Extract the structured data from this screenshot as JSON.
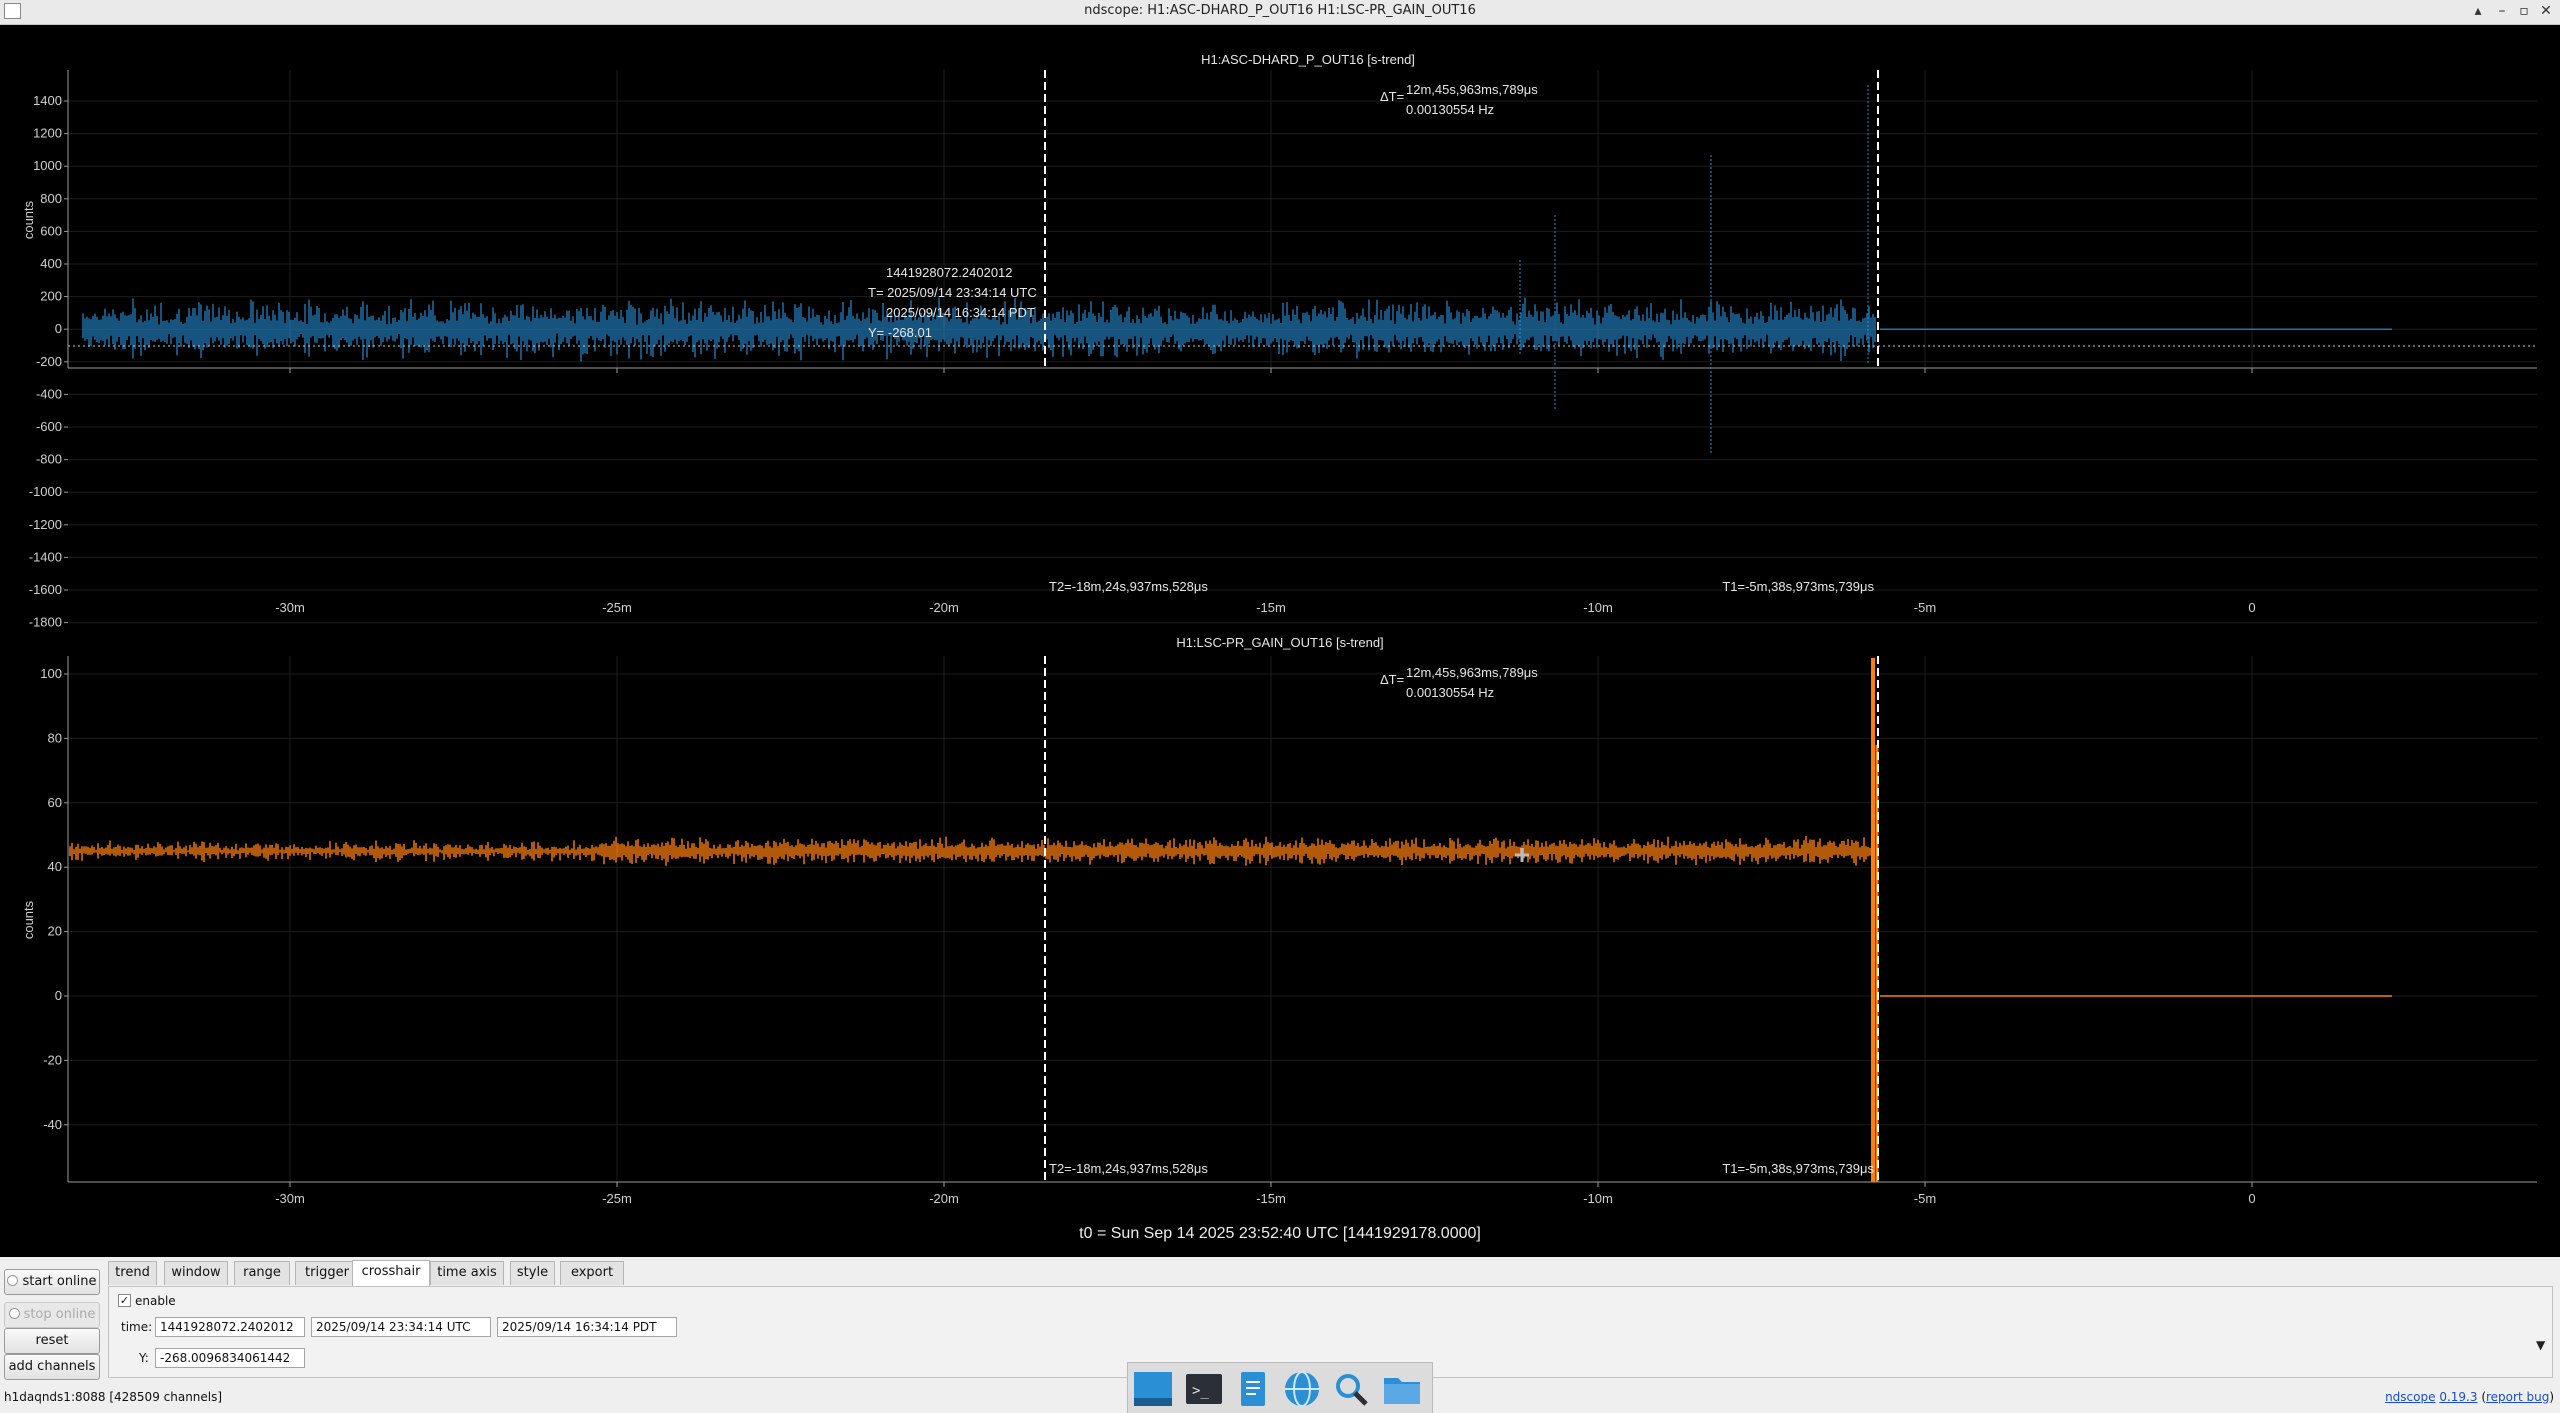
{
  "window": {
    "title": "ndscope: H1:ASC-DHARD_P_OUT16 H1:LSC-PR_GAIN_OUT16",
    "controls": [
      "▴",
      "–",
      "▫",
      "✕"
    ]
  },
  "plots": [
    {
      "title": "H1:ASC-DHARD_P_OUT16 [s-trend]",
      "ylabel": "counts",
      "yticks": [
        "1400",
        "1200",
        "1000",
        "800",
        "600",
        "400",
        "200",
        "0",
        "-200",
        "-400",
        "-600",
        "-800",
        "-1000",
        "-1200",
        "-1400",
        "-1600",
        "-1800"
      ],
      "xticks": [
        "-30m",
        "-25m",
        "-20m",
        "-15m",
        "-10m",
        "-5m",
        "0"
      ],
      "delta_label": "ΔT=",
      "delta_time": "12m,45s,963ms,789μs",
      "delta_freq": "0.00130554 Hz",
      "t2_label": "T2=-18m,24s,937ms,528μs",
      "t1_label": "T1=-5m,38s,973ms,739μs",
      "crosshair_gps": "1441928072.2402012",
      "crosshair_utc": "T= 2025/09/14 23:34:14 UTC",
      "crosshair_pdt": "2025/09/14 16:34:14 PDT",
      "crosshair_y": "Y= -268.01",
      "trace_color": "#1f77b4"
    },
    {
      "title": "H1:LSC-PR_GAIN_OUT16 [s-trend]",
      "ylabel": "counts",
      "yticks": [
        "100",
        "80",
        "60",
        "40",
        "20",
        "0",
        "-20",
        "-40"
      ],
      "xticks": [
        "-30m",
        "-25m",
        "-20m",
        "-15m",
        "-10m",
        "-5m",
        "0"
      ],
      "delta_label": "ΔT=",
      "delta_time": "12m,45s,963ms,789μs",
      "delta_freq": "0.00130554 Hz",
      "t2_label": "T2=-18m,24s,937ms,528μs",
      "t1_label": "T1=-5m,38s,973ms,739μs",
      "trace_color": "#ff7f0e"
    }
  ],
  "t0_label": "t0 = Sun Sep 14 2025 23:52:40 UTC [1441929178.0000]",
  "buttons": {
    "start_online": "start online",
    "stop_online": "stop online",
    "reset": "reset",
    "add_channels": "add channels"
  },
  "tabs": [
    "trend",
    "window",
    "range",
    "trigger",
    "crosshair",
    "time axis",
    "style",
    "export"
  ],
  "active_tab": "crosshair",
  "crosshair_panel": {
    "enable_label": "enable",
    "enable_checked": "✓",
    "time_label": "time:",
    "time_gps": "1441928072.2402012",
    "time_utc": "2025/09/14 23:34:14 UTC",
    "time_pdt": "2025/09/14 16:34:14 PDT",
    "y_label": "Y:",
    "y_value": "-268.0096834061442"
  },
  "status": "h1daqnds1:8088  [428509 channels]",
  "version": {
    "name": "ndscope",
    "number": "0.19.3",
    "report_bug": "report bug"
  },
  "dock_icons": [
    "desktop-icon",
    "terminal-icon",
    "text-editor-icon",
    "browser-icon",
    "search-icon",
    "folder-icon"
  ]
}
